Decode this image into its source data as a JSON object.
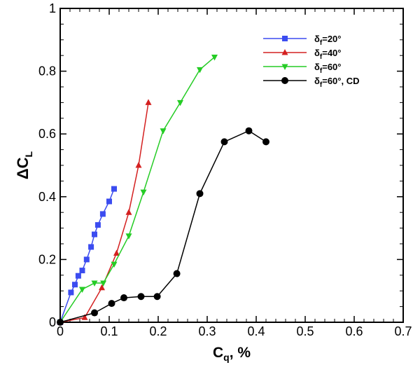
{
  "chart_data": {
    "type": "line",
    "xlabel": {
      "main": "C",
      "sub": "q",
      "suffix": ", %"
    },
    "ylabel": {
      "main": "ΔC",
      "sub": "L"
    },
    "xlim": [
      0,
      0.7
    ],
    "ylim": [
      0,
      1
    ],
    "xticks": [
      "0",
      "0.1",
      "0.2",
      "0.3",
      "0.4",
      "0.5",
      "0.6",
      "0.7"
    ],
    "yticks": [
      "0",
      "0.2",
      "0.4",
      "0.6",
      "0.8",
      "1"
    ],
    "grid": false,
    "legend_position": "top-right",
    "series": [
      {
        "name": {
          "pre": "δ",
          "sub": "f",
          "post": "=20°"
        },
        "color": "#3b4cf0",
        "marker": "square",
        "x": [
          0.0,
          0.022,
          0.03,
          0.037,
          0.045,
          0.054,
          0.063,
          0.07,
          0.077,
          0.087,
          0.1,
          0.11
        ],
        "y": [
          0.0,
          0.095,
          0.12,
          0.148,
          0.165,
          0.2,
          0.24,
          0.28,
          0.31,
          0.345,
          0.385,
          0.425
        ]
      },
      {
        "name": {
          "pre": "δ",
          "sub": "f",
          "post": "=40°"
        },
        "color": "#d42020",
        "marker": "triangle-up",
        "x": [
          0.0,
          0.05,
          0.085,
          0.115,
          0.14,
          0.16,
          0.18
        ],
        "y": [
          0.0,
          0.015,
          0.11,
          0.22,
          0.35,
          0.5,
          0.7
        ]
      },
      {
        "name": {
          "pre": "δ",
          "sub": "f",
          "post": "=60°"
        },
        "color": "#25cc25",
        "marker": "triangle-down",
        "x": [
          0.0,
          0.045,
          0.07,
          0.088,
          0.11,
          0.14,
          0.17,
          0.21,
          0.245,
          0.285,
          0.315
        ],
        "y": [
          0.0,
          0.105,
          0.125,
          0.125,
          0.185,
          0.275,
          0.415,
          0.61,
          0.7,
          0.805,
          0.845
        ]
      },
      {
        "name": {
          "pre": "δ",
          "sub": "f",
          "post": "=60°, CD"
        },
        "color": "#000000",
        "marker": "circle",
        "x": [
          0.0,
          0.07,
          0.105,
          0.13,
          0.165,
          0.198,
          0.238,
          0.285,
          0.335,
          0.385,
          0.42
        ],
        "y": [
          0.0,
          0.03,
          0.06,
          0.078,
          0.082,
          0.082,
          0.155,
          0.41,
          0.575,
          0.61,
          0.575
        ]
      }
    ]
  }
}
